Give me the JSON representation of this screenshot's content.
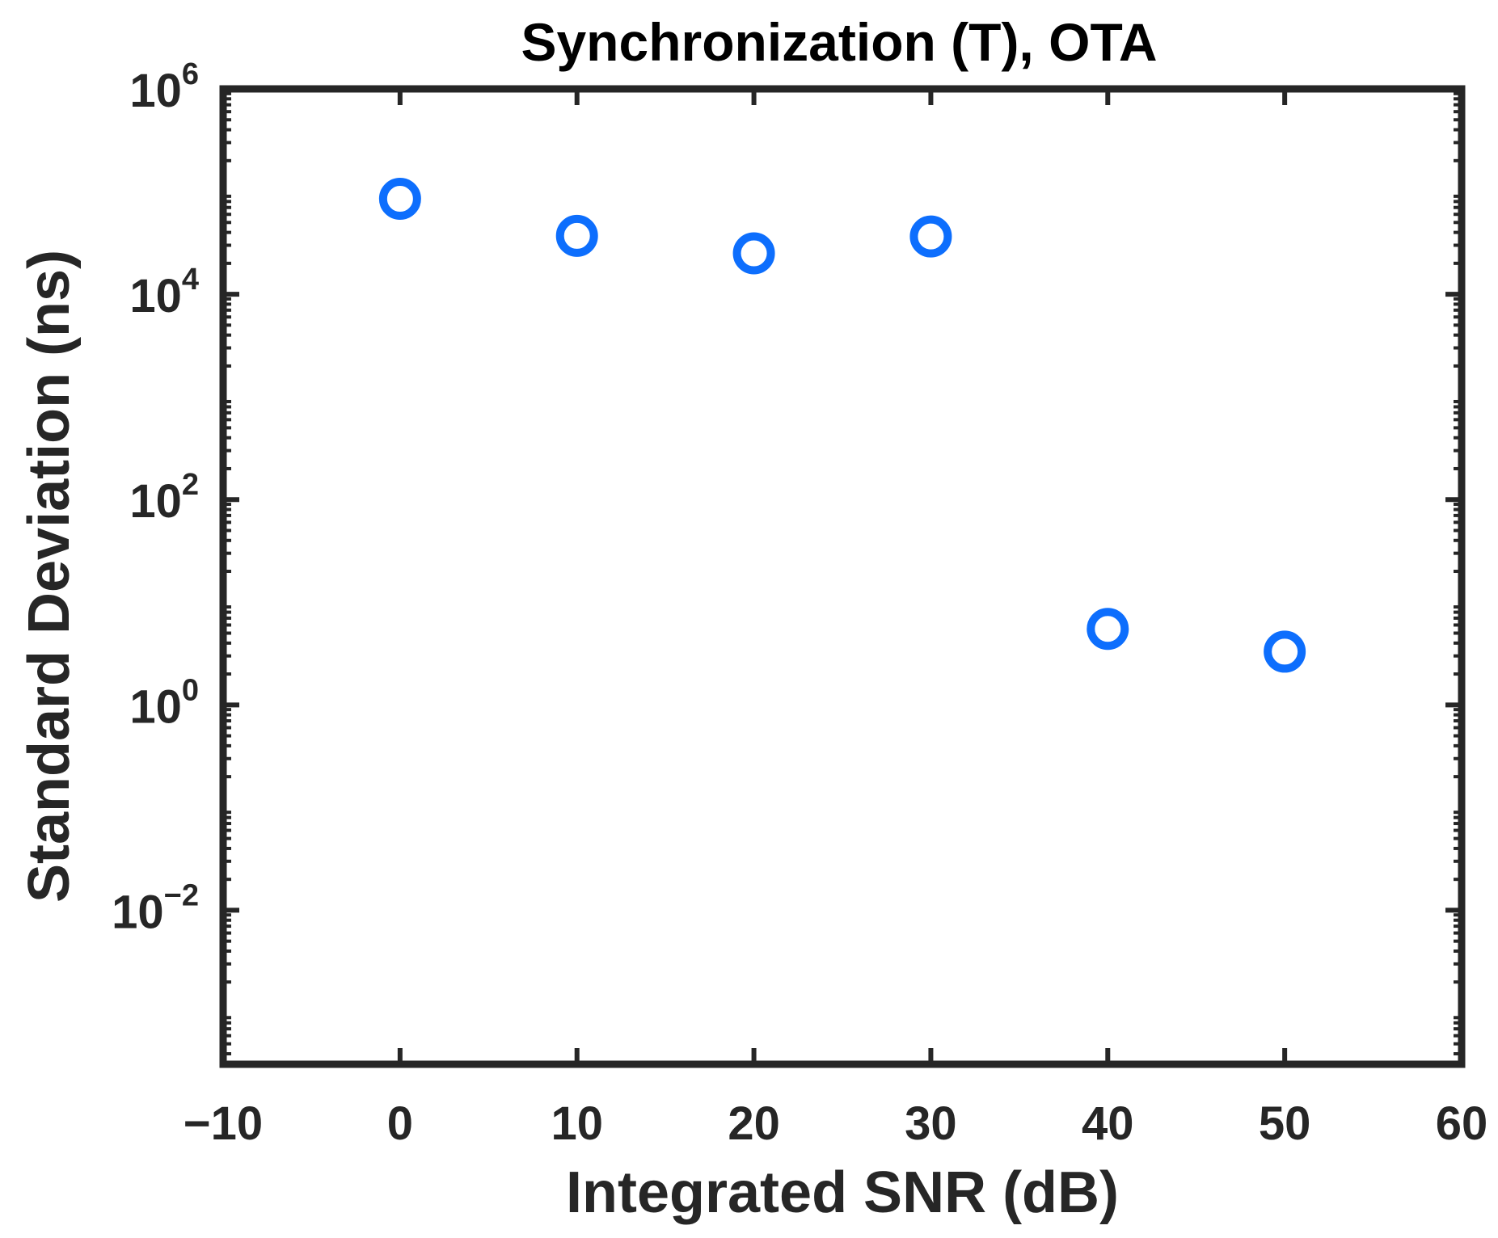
{
  "chart_data": {
    "type": "scatter",
    "title": "Synchronization (T), OTA",
    "xlabel": "Integrated SNR (dB)",
    "ylabel": "Standard Deviation (ns)",
    "xlim": [
      -10,
      60
    ],
    "ylim_exponent": [
      -3.5,
      6
    ],
    "y_scale": "log",
    "grid": false,
    "x_ticks": [
      {
        "value": -10,
        "label": "−10"
      },
      {
        "value": 0,
        "label": "0"
      },
      {
        "value": 10,
        "label": "10"
      },
      {
        "value": 20,
        "label": "20"
      },
      {
        "value": 30,
        "label": "30"
      },
      {
        "value": 40,
        "label": "40"
      },
      {
        "value": 50,
        "label": "50"
      },
      {
        "value": 60,
        "label": "60"
      }
    ],
    "y_ticks": [
      {
        "exponent": 6,
        "base": "10",
        "sup": "6"
      },
      {
        "exponent": 4,
        "base": "10",
        "sup": "4"
      },
      {
        "exponent": 2,
        "base": "10",
        "sup": "2"
      },
      {
        "exponent": 0,
        "base": "10",
        "sup": "0"
      },
      {
        "exponent": -2,
        "base": "10",
        "sup": "−2"
      }
    ],
    "series": [
      {
        "name": "Standard Deviation",
        "marker": "circle-open",
        "x": [
          0,
          10,
          20,
          30,
          40,
          50
        ],
        "y": [
          85000,
          37000,
          25000,
          36500,
          5.5,
          3.3
        ]
      }
    ]
  },
  "colors": {
    "axis": "#262626",
    "marker": "#0d6efd",
    "background": "#ffffff"
  }
}
